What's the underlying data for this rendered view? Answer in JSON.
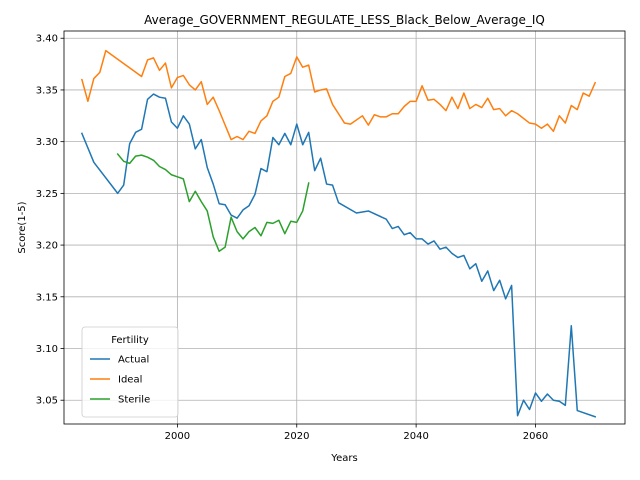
{
  "chart_data": {
    "type": "line",
    "title": "Average_GOVERNMENT_REGULATE_LESS_Black_Below_Average_IQ",
    "xlabel": "Years",
    "ylabel": "Score(1-5)",
    "xlim": [
      1981,
      2075
    ],
    "ylim": [
      3.027,
      3.407
    ],
    "xticks": [
      1980,
      2000,
      2020,
      2040,
      2060
    ],
    "yticks": [
      3.05,
      3.1,
      3.15,
      3.2,
      3.25,
      3.3,
      3.35,
      3.4
    ],
    "grid": true,
    "legend": {
      "title": "Fertility",
      "placement": "lower-left"
    },
    "series": [
      {
        "name": "Actual",
        "color": "#1f77b4",
        "points": [
          [
            1984,
            3.308
          ],
          [
            1986,
            3.28
          ],
          [
            1990,
            3.25
          ],
          [
            1991,
            3.258
          ],
          [
            1992,
            3.298
          ],
          [
            1993,
            3.309
          ],
          [
            1994,
            3.312
          ],
          [
            1995,
            3.341
          ],
          [
            1996,
            3.346
          ],
          [
            1997,
            3.343
          ],
          [
            1998,
            3.342
          ],
          [
            1999,
            3.319
          ],
          [
            2000,
            3.313
          ],
          [
            2001,
            3.325
          ],
          [
            2002,
            3.317
          ],
          [
            2003,
            3.293
          ],
          [
            2004,
            3.302
          ],
          [
            2005,
            3.275
          ],
          [
            2006,
            3.259
          ],
          [
            2007,
            3.24
          ],
          [
            2008,
            3.239
          ],
          [
            2009,
            3.229
          ],
          [
            2010,
            3.226
          ],
          [
            2011,
            3.234
          ],
          [
            2012,
            3.238
          ],
          [
            2013,
            3.249
          ],
          [
            2014,
            3.274
          ],
          [
            2015,
            3.271
          ],
          [
            2016,
            3.304
          ],
          [
            2017,
            3.297
          ],
          [
            2018,
            3.308
          ],
          [
            2019,
            3.297
          ],
          [
            2020,
            3.317
          ],
          [
            2021,
            3.297
          ],
          [
            2022,
            3.309
          ],
          [
            2023,
            3.272
          ],
          [
            2024,
            3.284
          ],
          [
            2025,
            3.259
          ],
          [
            2026,
            3.258
          ],
          [
            2027,
            3.241
          ],
          [
            2030,
            3.231
          ],
          [
            2032,
            3.233
          ],
          [
            2035,
            3.225
          ],
          [
            2036,
            3.216
          ],
          [
            2037,
            3.218
          ],
          [
            2038,
            3.21
          ],
          [
            2039,
            3.212
          ],
          [
            2040,
            3.206
          ],
          [
            2041,
            3.206
          ],
          [
            2042,
            3.201
          ],
          [
            2043,
            3.204
          ],
          [
            2044,
            3.196
          ],
          [
            2045,
            3.198
          ],
          [
            2046,
            3.192
          ],
          [
            2047,
            3.188
          ],
          [
            2048,
            3.19
          ],
          [
            2049,
            3.177
          ],
          [
            2050,
            3.182
          ],
          [
            2051,
            3.165
          ],
          [
            2052,
            3.175
          ],
          [
            2053,
            3.156
          ],
          [
            2054,
            3.166
          ],
          [
            2055,
            3.148
          ],
          [
            2056,
            3.161
          ],
          [
            2057,
            3.035
          ],
          [
            2058,
            3.05
          ],
          [
            2059,
            3.041
          ],
          [
            2060,
            3.057
          ],
          [
            2061,
            3.049
          ],
          [
            2062,
            3.056
          ],
          [
            2063,
            3.05
          ],
          [
            2064,
            3.049
          ],
          [
            2065,
            3.045
          ],
          [
            2066,
            3.122
          ],
          [
            2067,
            3.04
          ],
          [
            2070,
            3.034
          ]
        ]
      },
      {
        "name": "Ideal",
        "color": "#ff7f0e",
        "points": [
          [
            1984,
            3.36
          ],
          [
            1985,
            3.339
          ],
          [
            1986,
            3.361
          ],
          [
            1987,
            3.367
          ],
          [
            1988,
            3.388
          ],
          [
            1994,
            3.363
          ],
          [
            1995,
            3.379
          ],
          [
            1996,
            3.381
          ],
          [
            1997,
            3.369
          ],
          [
            1998,
            3.376
          ],
          [
            1999,
            3.352
          ],
          [
            2000,
            3.362
          ],
          [
            2001,
            3.364
          ],
          [
            2002,
            3.355
          ],
          [
            2003,
            3.35
          ],
          [
            2004,
            3.358
          ],
          [
            2005,
            3.336
          ],
          [
            2006,
            3.343
          ],
          [
            2007,
            3.33
          ],
          [
            2008,
            3.316
          ],
          [
            2009,
            3.302
          ],
          [
            2010,
            3.305
          ],
          [
            2011,
            3.302
          ],
          [
            2012,
            3.31
          ],
          [
            2013,
            3.308
          ],
          [
            2014,
            3.32
          ],
          [
            2015,
            3.325
          ],
          [
            2016,
            3.339
          ],
          [
            2017,
            3.343
          ],
          [
            2018,
            3.363
          ],
          [
            2019,
            3.366
          ],
          [
            2020,
            3.382
          ],
          [
            2021,
            3.372
          ],
          [
            2022,
            3.374
          ],
          [
            2023,
            3.348
          ],
          [
            2024,
            3.35
          ],
          [
            2025,
            3.351
          ],
          [
            2026,
            3.336
          ],
          [
            2027,
            3.327
          ],
          [
            2028,
            3.318
          ],
          [
            2029,
            3.317
          ],
          [
            2031,
            3.325
          ],
          [
            2032,
            3.316
          ],
          [
            2033,
            3.326
          ],
          [
            2034,
            3.324
          ],
          [
            2035,
            3.324
          ],
          [
            2036,
            3.327
          ],
          [
            2037,
            3.327
          ],
          [
            2038,
            3.334
          ],
          [
            2039,
            3.339
          ],
          [
            2040,
            3.339
          ],
          [
            2041,
            3.354
          ],
          [
            2042,
            3.34
          ],
          [
            2043,
            3.341
          ],
          [
            2044,
            3.336
          ],
          [
            2045,
            3.33
          ],
          [
            2046,
            3.343
          ],
          [
            2047,
            3.332
          ],
          [
            2048,
            3.347
          ],
          [
            2049,
            3.332
          ],
          [
            2050,
            3.336
          ],
          [
            2051,
            3.333
          ],
          [
            2052,
            3.342
          ],
          [
            2053,
            3.331
          ],
          [
            2054,
            3.332
          ],
          [
            2055,
            3.325
          ],
          [
            2056,
            3.33
          ],
          [
            2057,
            3.327
          ],
          [
            2059,
            3.318
          ],
          [
            2060,
            3.317
          ],
          [
            2061,
            3.313
          ],
          [
            2062,
            3.317
          ],
          [
            2063,
            3.31
          ],
          [
            2064,
            3.325
          ],
          [
            2065,
            3.318
          ],
          [
            2066,
            3.335
          ],
          [
            2067,
            3.331
          ],
          [
            2068,
            3.347
          ],
          [
            2069,
            3.344
          ],
          [
            2070,
            3.357
          ]
        ]
      },
      {
        "name": "Sterile",
        "color": "#2ca02c",
        "points": [
          [
            1990,
            3.288
          ],
          [
            1991,
            3.281
          ],
          [
            1992,
            3.279
          ],
          [
            1993,
            3.286
          ],
          [
            1994,
            3.287
          ],
          [
            1995,
            3.285
          ],
          [
            1996,
            3.282
          ],
          [
            1997,
            3.276
          ],
          [
            1998,
            3.273
          ],
          [
            1999,
            3.268
          ],
          [
            2000,
            3.266
          ],
          [
            2001,
            3.264
          ],
          [
            2002,
            3.242
          ],
          [
            2003,
            3.252
          ],
          [
            2004,
            3.242
          ],
          [
            2005,
            3.233
          ],
          [
            2006,
            3.208
          ],
          [
            2007,
            3.194
          ],
          [
            2008,
            3.198
          ],
          [
            2009,
            3.227
          ],
          [
            2010,
            3.213
          ],
          [
            2011,
            3.206
          ],
          [
            2012,
            3.213
          ],
          [
            2013,
            3.217
          ],
          [
            2014,
            3.209
          ],
          [
            2015,
            3.222
          ],
          [
            2016,
            3.221
          ],
          [
            2017,
            3.224
          ],
          [
            2018,
            3.211
          ],
          [
            2019,
            3.223
          ],
          [
            2020,
            3.222
          ],
          [
            2021,
            3.233
          ],
          [
            2022,
            3.26
          ]
        ]
      }
    ]
  }
}
